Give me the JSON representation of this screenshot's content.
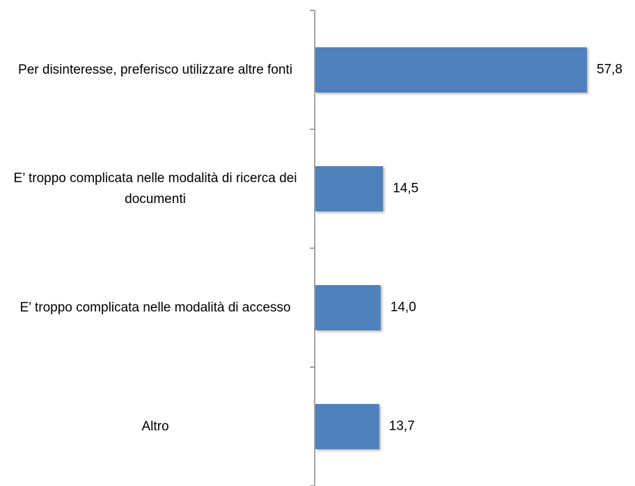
{
  "chart_data": {
    "type": "bar",
    "orientation": "horizontal",
    "categories": [
      "Per disinteresse, preferisco utilizzare altre fonti",
      "E’ troppo complicata nelle modalità di ricerca dei documenti",
      "E’ troppo complicata nelle modalità di accesso",
      "Altro"
    ],
    "values": [
      57.8,
      14.5,
      14.0,
      13.7
    ],
    "value_labels": [
      "57,8",
      "14,5",
      "14,0",
      "13,7"
    ],
    "color": "#4f81bd"
  }
}
